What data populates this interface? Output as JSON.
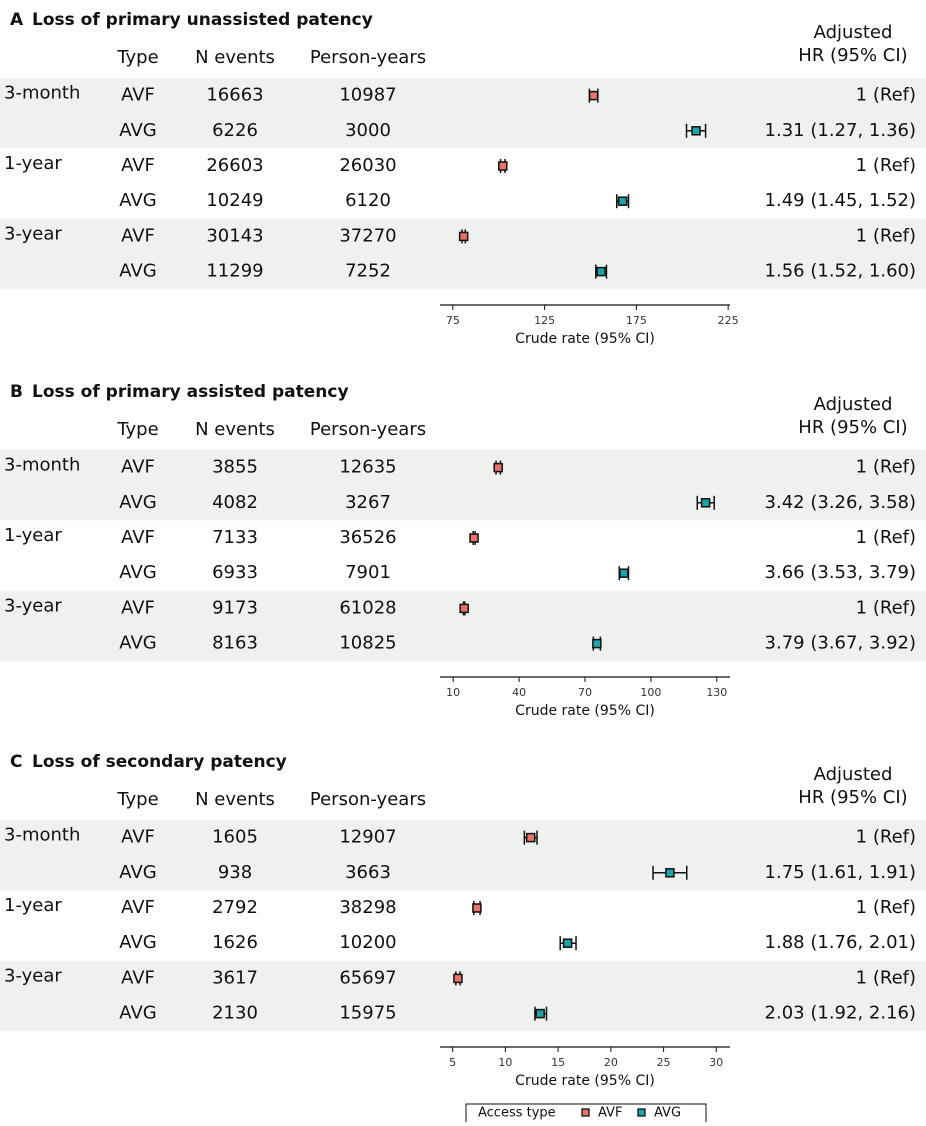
{
  "chart_data": [
    {
      "type": "forest",
      "label": "A",
      "title": "Loss of primary unassisted patency",
      "columns": [
        "Type",
        "N events",
        "Person-years"
      ],
      "hr_header": [
        "Adjusted",
        "HR (95% CI)"
      ],
      "periods": [
        "3-month",
        null,
        "1-year",
        null,
        "3-year",
        null
      ],
      "types": [
        "AVF",
        "AVG",
        "AVF",
        "AVG",
        "AVF",
        "AVG"
      ],
      "n_events": [
        16663,
        6226,
        26603,
        10249,
        30143,
        11299
      ],
      "person_years": [
        10987,
        3000,
        26030,
        6120,
        37270,
        7252
      ],
      "hr": [
        "1 (Ref)",
        "1.31 (1.27, 1.36)",
        "1 (Ref)",
        "1.49 (1.45, 1.52)",
        "1 (Ref)",
        "1.56 (1.52, 1.60)"
      ],
      "values": [
        151.7,
        207.5,
        102.2,
        167.5,
        80.9,
        155.8
      ],
      "ci_low": [
        149.4,
        202.3,
        101.0,
        164.3,
        80.0,
        152.9
      ],
      "ci_high": [
        154.0,
        212.7,
        103.4,
        170.7,
        81.8,
        158.7
      ],
      "xlim": [
        68,
        226
      ],
      "xticks": [
        75,
        125,
        175,
        225
      ],
      "xlabel": "Crude rate (95% CI)"
    },
    {
      "type": "forest",
      "label": "B",
      "title": "Loss of primary assisted patency",
      "columns": [
        "Type",
        "N events",
        "Person-years"
      ],
      "hr_header": [
        "Adjusted",
        "HR (95% CI)"
      ],
      "periods": [
        "3-month",
        null,
        "1-year",
        null,
        "3-year",
        null
      ],
      "types": [
        "AVF",
        "AVG",
        "AVF",
        "AVG",
        "AVF",
        "AVG"
      ],
      "n_events": [
        3855,
        4082,
        7133,
        6933,
        9173,
        8163
      ],
      "person_years": [
        12635,
        3267,
        36526,
        7901,
        61028,
        10825
      ],
      "hr": [
        "1 (Ref)",
        "3.42 (3.26, 3.58)",
        "1 (Ref)",
        "3.66 (3.53, 3.79)",
        "1 (Ref)",
        "3.79 (3.67, 3.92)"
      ],
      "values": [
        30.5,
        124.9,
        19.5,
        87.7,
        15.0,
        75.4
      ],
      "ci_low": [
        29.5,
        121.1,
        19.1,
        85.6,
        14.7,
        73.8
      ],
      "ci_high": [
        31.5,
        128.8,
        20.0,
        89.8,
        15.3,
        77.0
      ],
      "xlim": [
        4,
        136
      ],
      "xticks": [
        10,
        40,
        70,
        100,
        130
      ],
      "xlabel": "Crude rate (95% CI)"
    },
    {
      "type": "forest",
      "label": "C",
      "title": "Loss of secondary patency",
      "columns": [
        "Type",
        "N events",
        "Person-years"
      ],
      "hr_header": [
        "Adjusted",
        "HR (95% CI)"
      ],
      "periods": [
        "3-month",
        null,
        "1-year",
        null,
        "3-year",
        null
      ],
      "types": [
        "AVF",
        "AVG",
        "AVF",
        "AVG",
        "AVF",
        "AVG"
      ],
      "n_events": [
        1605,
        938,
        2792,
        1626,
        3617,
        2130
      ],
      "person_years": [
        12907,
        3663,
        38298,
        10200,
        65697,
        15975
      ],
      "hr": [
        "1 (Ref)",
        "1.75 (1.61, 1.91)",
        "1 (Ref)",
        "1.88 (1.76, 2.01)",
        "1 (Ref)",
        "2.03 (1.92, 2.16)"
      ],
      "values": [
        12.4,
        25.6,
        7.3,
        15.9,
        5.5,
        13.3
      ],
      "ci_low": [
        11.8,
        24.0,
        7.0,
        15.2,
        5.3,
        12.8
      ],
      "ci_high": [
        13.0,
        27.2,
        7.6,
        16.7,
        5.7,
        13.9
      ],
      "xlim": [
        3.8,
        31.3
      ],
      "xticks": [
        5,
        10,
        15,
        20,
        25,
        30
      ],
      "xlabel": "Crude rate (95% CI)"
    }
  ],
  "legend": {
    "title": "Access type",
    "entries": [
      {
        "name": "AVF",
        "color": "#e8736b"
      },
      {
        "name": "AVG",
        "color": "#1ba3a8"
      }
    ]
  }
}
